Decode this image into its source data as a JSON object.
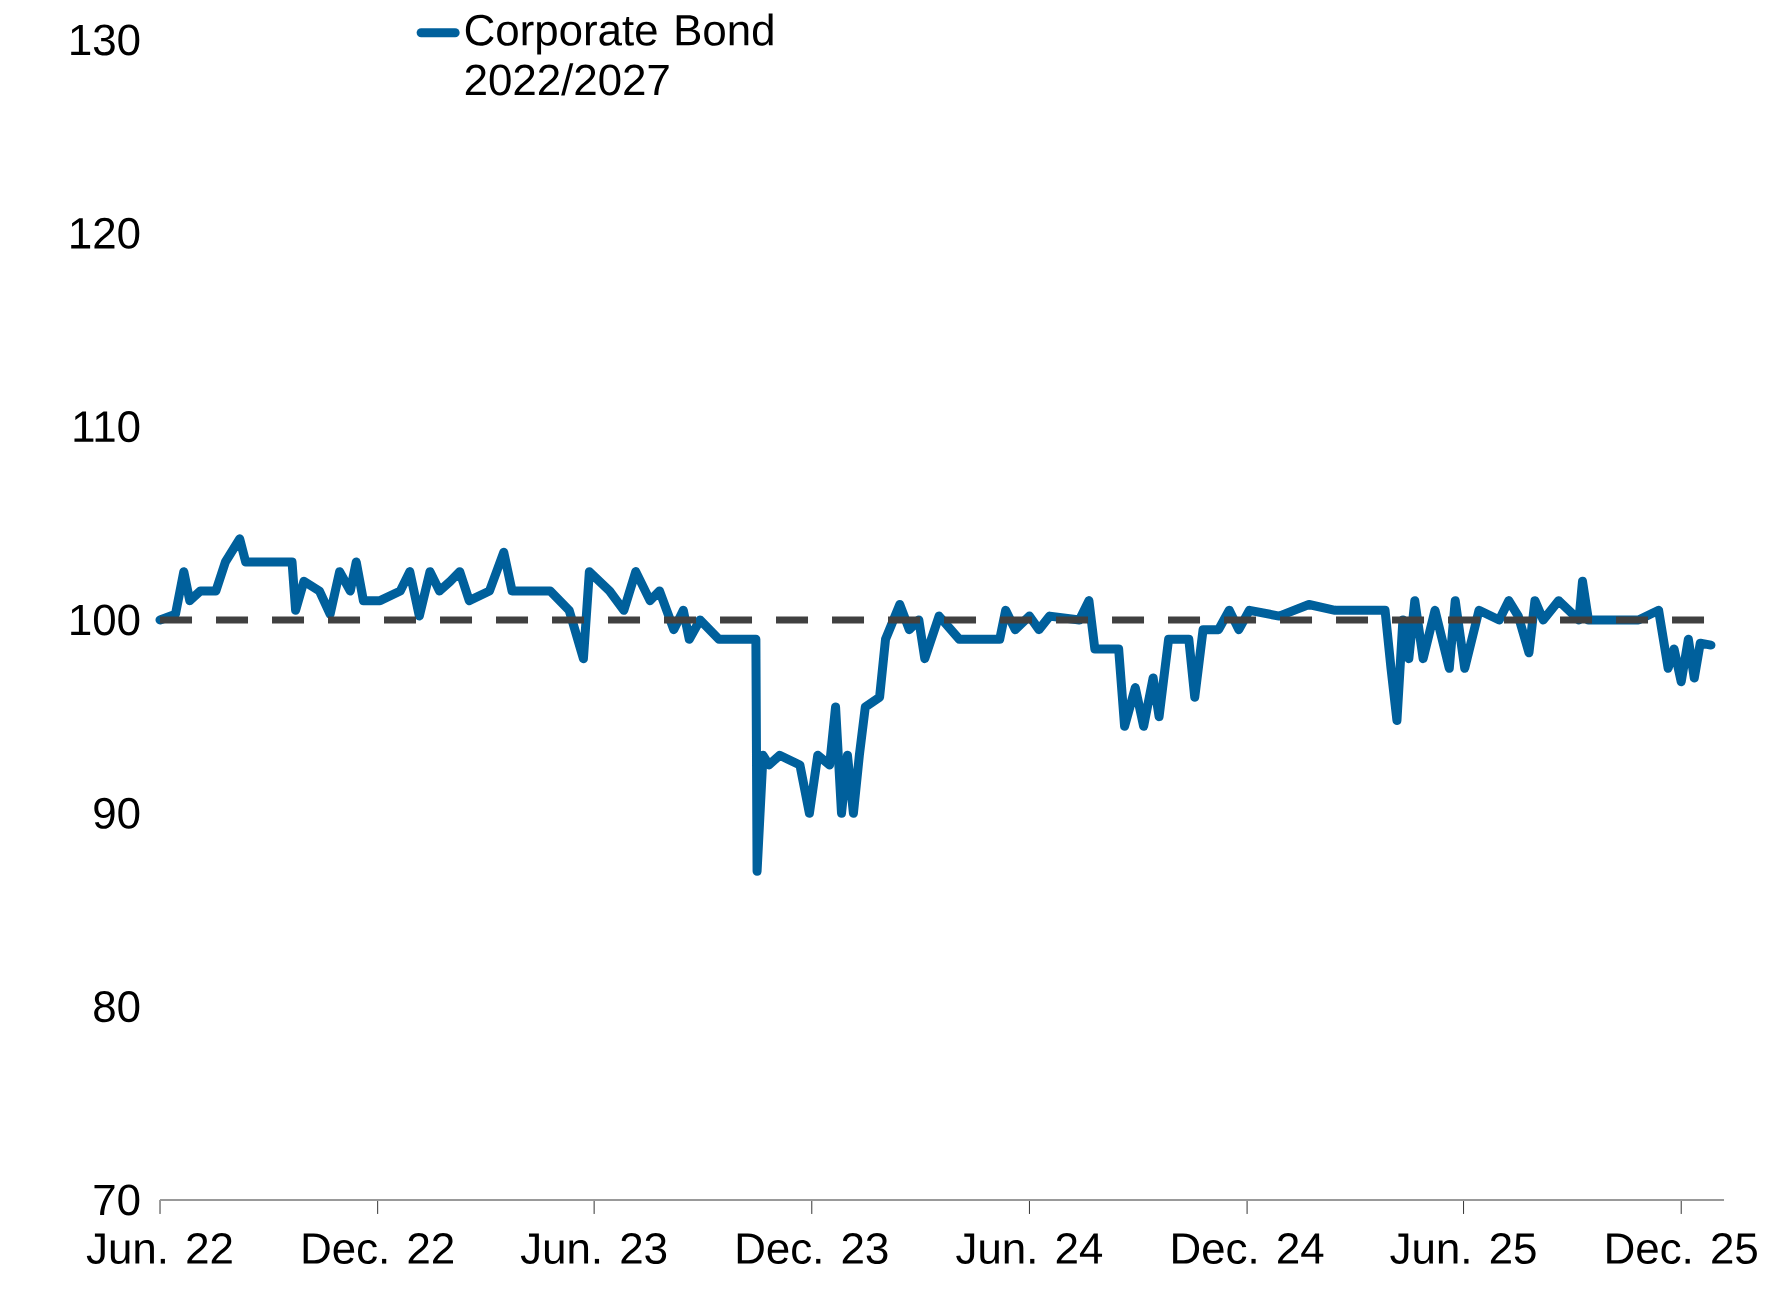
{
  "chart_data": {
    "type": "line",
    "x": [
      "2022-06-01",
      "2022-06-14",
      "2022-06-21",
      "2022-06-26",
      "2022-07-05",
      "2022-07-18",
      "2022-07-26",
      "2022-08-07",
      "2022-08-12",
      "2022-09-10",
      "2022-09-20",
      "2022-09-23",
      "2022-09-30",
      "2022-10-13",
      "2022-10-22",
      "2022-10-30",
      "2022-11-08",
      "2022-11-13",
      "2022-11-19",
      "2022-12-03",
      "2022-12-20",
      "2022-12-28",
      "2023-01-05",
      "2023-01-14",
      "2023-01-22",
      "2023-01-31",
      "2023-02-08",
      "2023-02-16",
      "2023-03-05",
      "2023-03-17",
      "2023-03-24",
      "2023-04-25",
      "2023-05-11",
      "2023-05-23",
      "2023-05-28",
      "2023-06-14",
      "2023-06-26",
      "2023-07-06",
      "2023-07-18",
      "2023-07-26",
      "2023-08-07",
      "2023-08-15",
      "2023-08-20",
      "2023-08-29",
      "2023-09-14",
      "2023-10-01",
      "2023-10-15",
      "2023-10-16",
      "2023-10-21",
      "2023-10-26",
      "2023-11-04",
      "2023-11-21",
      "2023-11-29",
      "2023-12-06",
      "2023-12-16",
      "2023-12-21",
      "2023-12-26",
      "2023-12-31",
      "2024-01-05",
      "2024-01-10",
      "2024-01-15",
      "2024-01-27",
      "2024-02-01",
      "2024-02-13",
      "2024-02-21",
      "2024-02-29",
      "2024-03-05",
      "2024-03-17",
      "2024-04-03",
      "2024-05-07",
      "2024-05-12",
      "2024-05-20",
      "2024-06-01",
      "2024-06-09",
      "2024-06-18",
      "2024-07-13",
      "2024-07-21",
      "2024-07-26",
      "2024-08-15",
      "2024-08-20",
      "2024-08-29",
      "2024-09-05",
      "2024-09-13",
      "2024-09-18",
      "2024-09-26",
      "2024-10-13",
      "2024-10-18",
      "2024-10-25",
      "2024-11-07",
      "2024-11-16",
      "2024-11-24",
      "2024-12-03",
      "2024-12-28",
      "2025-01-22",
      "2025-02-13",
      "2025-03-02",
      "2025-03-27",
      "2025-04-01",
      "2025-04-06",
      "2025-04-11",
      "2025-04-16",
      "2025-04-21",
      "2025-04-28",
      "2025-05-08",
      "2025-05-20",
      "2025-05-25",
      "2025-06-02",
      "2025-06-14",
      "2025-07-01",
      "2025-07-09",
      "2025-07-17",
      "2025-07-26",
      "2025-07-31",
      "2025-08-07",
      "2025-08-20",
      "2025-09-06",
      "2025-09-09",
      "2025-09-14",
      "2025-10-26",
      "2025-11-12",
      "2025-11-20",
      "2025-11-25",
      "2025-12-01",
      "2025-12-07",
      "2025-12-12",
      "2025-12-17",
      "2025-12-26"
    ],
    "series": [
      {
        "name": "Corporate Bond 2022/2027",
        "color": "#00609c",
        "values": [
          100,
          100.3,
          102.5,
          101,
          101.5,
          101.5,
          103,
          104.2,
          103,
          103,
          103,
          100.5,
          102,
          101.5,
          100.3,
          102.5,
          101.5,
          103,
          101,
          101,
          101.5,
          102.5,
          100.2,
          102.5,
          101.5,
          102,
          102.5,
          101,
          101.5,
          103.5,
          101.5,
          101.5,
          100.5,
          98,
          102.5,
          101.5,
          100.5,
          102.5,
          101,
          101.5,
          99.5,
          100.5,
          99,
          100,
          99,
          99,
          99,
          87,
          93,
          92.5,
          93,
          92.5,
          90,
          93,
          92.5,
          95.5,
          90,
          93,
          90,
          93,
          95.5,
          96,
          99,
          100.8,
          99.5,
          100,
          98,
          100.2,
          99,
          99,
          100.5,
          99.5,
          100.2,
          99.5,
          100.2,
          100,
          101,
          98.5,
          98.5,
          94.5,
          96.5,
          94.5,
          97,
          95,
          99,
          99,
          96,
          99.5,
          99.5,
          100.5,
          99.5,
          100.5,
          100.2,
          100.8,
          100.5,
          100.5,
          100.5,
          97.5,
          94.8,
          100,
          98,
          101,
          98,
          100.5,
          97.5,
          101,
          97.5,
          100.5,
          100,
          101,
          100.2,
          98.3,
          101,
          100,
          101,
          100,
          102,
          100,
          100,
          100.5,
          97.5,
          98.5,
          96.8,
          99,
          97,
          98.8,
          98.7
        ]
      }
    ],
    "xlim": [
      "2022-06-01",
      "2026-01-06"
    ],
    "xticks": [
      {
        "value": "2022-06-01",
        "label": "Jun. 22"
      },
      {
        "value": "2022-12-01",
        "label": "Dec. 22"
      },
      {
        "value": "2023-06-01",
        "label": "Jun. 23"
      },
      {
        "value": "2023-12-01",
        "label": "Dec. 23"
      },
      {
        "value": "2024-06-01",
        "label": "Jun. 24"
      },
      {
        "value": "2024-12-01",
        "label": "Dec. 24"
      },
      {
        "value": "2025-06-01",
        "label": "Jun. 25"
      },
      {
        "value": "2025-12-01",
        "label": "Dec. 25"
      }
    ],
    "ylim": [
      70,
      130
    ],
    "yticks": [
      70,
      80,
      90,
      100,
      110,
      120,
      130
    ],
    "ref_lines": [
      {
        "axis": "y",
        "value": 100,
        "color": "#404040",
        "line_style": "dashed"
      }
    ],
    "legend": "top left",
    "grid": false,
    "marker": "none",
    "line_style": "solid"
  }
}
